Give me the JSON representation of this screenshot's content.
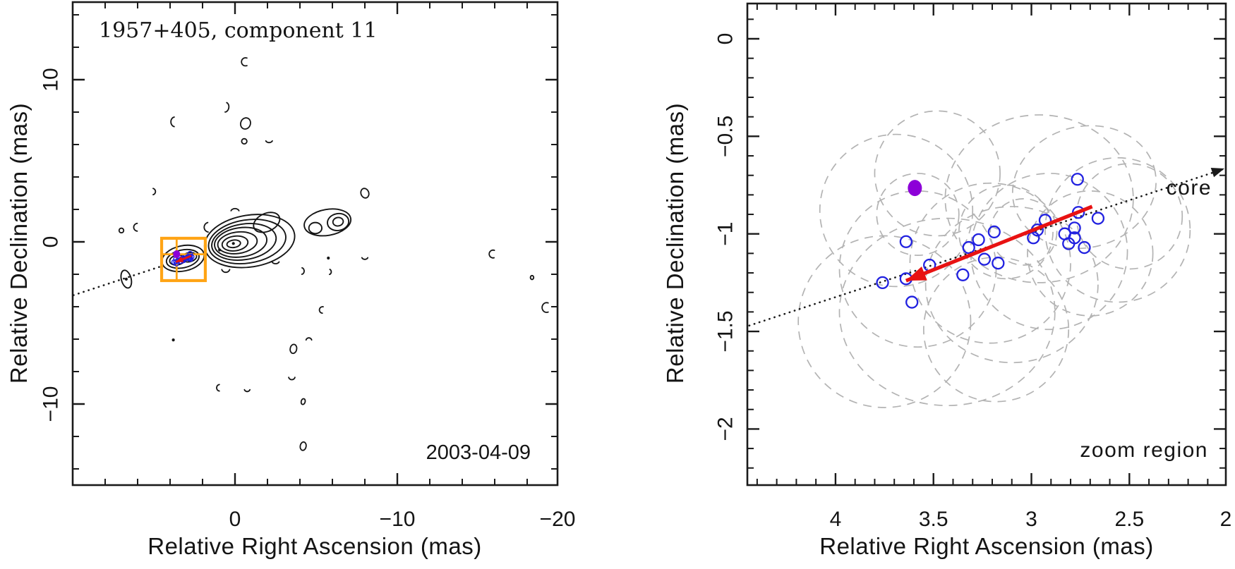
{
  "colors": {
    "contour_black": "#151515",
    "frame_black": "#1a1a1a",
    "points_blue": "#2121e0",
    "current_epoch_purple": "#8d00d8",
    "arrow_red": "#e81212",
    "zoom_box_orange": "#ffa415",
    "size_ellipse_gray": "#b3b3b3",
    "annotation_gray": "#565656",
    "date_gray": "#8a8a8a"
  },
  "chart_data": [
    {
      "type": "contour_map",
      "title": "1957+405, component 11",
      "date_label": "2003-04-09",
      "xlabel": "Relative Right Ascension (mas)",
      "ylabel": "Relative Declination (mas)",
      "xlim": [
        10,
        -19.9
      ],
      "ylim": [
        -15,
        14.8
      ],
      "axes": {
        "x_major": [
          {
            "v": 0,
            "label": "0"
          },
          {
            "v": -10,
            "label": "−10"
          },
          {
            "v": -20,
            "label": "−20"
          }
        ],
        "x_minor": [
          8,
          6,
          4,
          2,
          -2,
          -4,
          -6,
          -8,
          -12,
          -14,
          -16,
          -18
        ],
        "y_major": [
          {
            "v": 10,
            "label": "10"
          },
          {
            "v": 0,
            "label": "0"
          },
          {
            "v": -10,
            "label": "−10"
          }
        ],
        "y_minor": [
          14,
          12,
          8,
          6,
          4,
          2,
          -2,
          -4,
          -6,
          -8,
          -12,
          -14
        ]
      },
      "contours": {
        "core_jet": [
          [
            -0.9,
            0.05,
            2.8,
            1.6,
            -9
          ],
          [
            -0.75,
            0.02,
            2.4,
            1.33,
            -9
          ],
          [
            -0.55,
            0.0,
            2.0,
            1.1,
            -9
          ],
          [
            -0.35,
            -0.03,
            1.62,
            0.9,
            -8
          ],
          [
            -0.15,
            -0.06,
            1.22,
            0.66,
            -8
          ],
          [
            0.0,
            -0.1,
            0.8,
            0.45,
            -8
          ],
          [
            0.08,
            -0.12,
            0.42,
            0.23,
            -8
          ],
          [
            -1.95,
            1.2,
            0.85,
            0.55,
            -25
          ]
        ],
        "west_hotspot": [
          [
            -5.7,
            1.2,
            1.45,
            0.8,
            -10
          ],
          [
            -4.95,
            0.85,
            0.4,
            0.34,
            0
          ],
          [
            -6.35,
            1.22,
            0.66,
            0.52,
            -10
          ],
          [
            -6.35,
            1.24,
            0.32,
            0.26,
            -10
          ]
        ],
        "component11": [
          [
            3.2,
            -1.02,
            1.32,
            0.78,
            -12
          ],
          [
            3.22,
            -1.05,
            1.02,
            0.55,
            -12
          ],
          [
            3.55,
            -1.12,
            0.48,
            0.3,
            -12
          ],
          [
            2.82,
            -0.95,
            0.46,
            0.28,
            -12
          ]
        ],
        "southeast_knot": [
          [
            6.7,
            -2.3,
            0.3,
            0.56,
            -15
          ]
        ]
      },
      "peak_dots": [
        [
          0.1,
          -0.1
        ],
        [
          0.95,
          -0.5
        ],
        [
          6.7,
          -2.3
        ]
      ],
      "noise_fragments": [
        [
          -0.65,
          11.1,
          0.25,
          0.25,
          0,
          70,
          290
        ],
        [
          0.6,
          8.3,
          0.22,
          0.3,
          10,
          -80,
          80
        ],
        [
          3.7,
          7.4,
          0.25,
          0.3,
          0,
          100,
          260
        ],
        [
          -0.65,
          7.3,
          0.3,
          0.35,
          20,
          0,
          360
        ],
        [
          -0.57,
          6.2,
          0.16,
          0.16,
          0,
          0,
          360
        ],
        [
          -2.1,
          6.3,
          0.22,
          0.18,
          0,
          25,
          155
        ],
        [
          5.1,
          3.1,
          0.2,
          0.2,
          0,
          -75,
          75
        ],
        [
          7.0,
          0.7,
          0.14,
          0.14,
          0,
          0,
          360
        ],
        [
          6.0,
          0.9,
          0.24,
          0.24,
          0,
          95,
          265
        ],
        [
          1.6,
          0.9,
          0.3,
          0.3,
          0,
          100,
          255
        ],
        [
          0.0,
          1.85,
          0.26,
          0.2,
          0,
          200,
          340
        ],
        [
          -8.0,
          3.0,
          0.24,
          0.3,
          -20,
          0,
          360
        ],
        [
          0.57,
          -1.62,
          0.26,
          0.26,
          0,
          20,
          160
        ],
        [
          -2.5,
          -1.15,
          0.24,
          0.2,
          0,
          25,
          160
        ],
        [
          -4.1,
          -1.8,
          0.16,
          0.2,
          0,
          -80,
          85
        ],
        [
          -5.8,
          -1.85,
          0.13,
          0.16,
          0,
          -70,
          80
        ],
        [
          -15.9,
          -0.75,
          0.24,
          0.24,
          0,
          75,
          290
        ],
        [
          -18.3,
          -2.2,
          0.1,
          0.12,
          0,
          0,
          360
        ],
        [
          -19.2,
          -4.05,
          0.28,
          0.3,
          0,
          70,
          290
        ],
        [
          -5.4,
          -4.2,
          0.2,
          0.2,
          0,
          95,
          280
        ],
        [
          -3.6,
          -6.6,
          0.2,
          0.28,
          10,
          0,
          360
        ],
        [
          -4.55,
          -6.1,
          0.18,
          0.18,
          0,
          195,
          345
        ],
        [
          -3.5,
          -8.3,
          0.2,
          0.2,
          0,
          15,
          165
        ],
        [
          0.95,
          -9.0,
          0.18,
          0.2,
          0,
          95,
          265
        ],
        [
          -0.75,
          -9.05,
          0.18,
          0.18,
          0,
          20,
          160
        ],
        [
          -4.2,
          -9.85,
          0.12,
          0.18,
          15,
          0,
          360
        ],
        [
          -4.2,
          -12.6,
          0.18,
          0.26,
          10,
          0,
          360
        ],
        [
          -8.0,
          -0.9,
          0.2,
          0.18,
          0,
          25,
          155
        ]
      ],
      "tiny_dots": [
        [
          -5.75,
          -1.0
        ],
        [
          3.8,
          -6.05
        ]
      ],
      "jet_axis_line": {
        "x1": 9.95,
        "y1": -3.29,
        "x2": 4.55,
        "y2": -1.51,
        "arrow": false
      },
      "zoom_box": {
        "ra_max": 4.52,
        "ra_min": 1.83,
        "dec_max": 0.22,
        "dec_min": -2.39
      }
    },
    {
      "type": "scatter",
      "xlabel": "Relative Right Ascension (mas)",
      "ylabel": "Relative Declination (mas)",
      "xlim": [
        4.45,
        2.0
      ],
      "ylim": [
        -2.29,
        0.18
      ],
      "axes": {
        "x_major": [
          {
            "v": 4,
            "label": "4"
          },
          {
            "v": 3.5,
            "label": "3.5"
          },
          {
            "v": 3,
            "label": "3"
          },
          {
            "v": 2.5,
            "label": "2.5"
          },
          {
            "v": 2,
            "label": "2"
          }
        ],
        "x_minor": [
          4.4,
          4.3,
          4.2,
          4.1,
          3.9,
          3.8,
          3.7,
          3.6,
          3.4,
          3.3,
          3.2,
          3.1,
          2.9,
          2.8,
          2.7,
          2.6,
          2.4,
          2.3,
          2.2,
          2.1
        ],
        "y_major": [
          {
            "v": 0,
            "label": "0"
          },
          {
            "v": -0.5,
            "label": "−0.5"
          },
          {
            "v": -1,
            "label": "−1"
          },
          {
            "v": -1.5,
            "label": "−1.5"
          },
          {
            "v": -2,
            "label": "−2"
          }
        ],
        "y_minor": [
          0.1,
          -0.1,
          -0.2,
          -0.3,
          -0.4,
          -0.6,
          -0.7,
          -0.8,
          -0.9,
          -1.1,
          -1.2,
          -1.3,
          -1.4,
          -1.6,
          -1.7,
          -1.8,
          -1.9,
          -2.1,
          -2.2
        ]
      },
      "component_positions": [
        [
          2.765,
          -0.72
        ],
        [
          3.64,
          -1.04
        ],
        [
          3.76,
          -1.25
        ],
        [
          3.64,
          -1.23
        ],
        [
          3.61,
          -1.35
        ],
        [
          3.52,
          -1.16
        ],
        [
          3.35,
          -1.21
        ],
        [
          3.32,
          -1.07
        ],
        [
          3.27,
          -1.03
        ],
        [
          3.24,
          -1.13
        ],
        [
          3.19,
          -0.99
        ],
        [
          3.17,
          -1.15
        ],
        [
          2.99,
          -1.02
        ],
        [
          2.97,
          -0.98
        ],
        [
          2.93,
          -0.93
        ],
        [
          2.83,
          -1.0
        ],
        [
          2.78,
          -0.97
        ],
        [
          2.78,
          -1.02
        ],
        [
          2.81,
          -1.05
        ],
        [
          2.73,
          -1.07
        ],
        [
          2.76,
          -0.89
        ],
        [
          2.66,
          -0.92
        ]
      ],
      "current_epoch_position": {
        "x": 3.595,
        "y": -0.765
      },
      "epoch_size_ellipses": [
        [
          3.69,
          -0.88,
          0.39,
          0.39,
          0
        ],
        [
          3.58,
          -1.18,
          0.4,
          0.4,
          0
        ],
        [
          3.75,
          -1.45,
          0.44,
          0.44,
          0
        ],
        [
          3.43,
          -1.4,
          0.55,
          0.48,
          0
        ],
        [
          3.58,
          -0.9,
          0.21,
          0.21,
          0
        ],
        [
          3.21,
          -1.15,
          0.41,
          0.41,
          0
        ],
        [
          3.1,
          -1.26,
          0.44,
          0.4,
          0
        ],
        [
          3.18,
          -1.49,
          0.37,
          0.37,
          0
        ],
        [
          3.13,
          -0.99,
          0.24,
          0.24,
          0
        ],
        [
          3.04,
          -0.99,
          0.17,
          0.17,
          0
        ],
        [
          2.96,
          -0.82,
          0.48,
          0.43,
          0
        ],
        [
          2.91,
          -1.09,
          0.4,
          0.4,
          0
        ],
        [
          2.73,
          -0.76,
          0.37,
          0.31,
          -15
        ],
        [
          2.56,
          -0.98,
          0.37,
          0.37,
          0
        ],
        [
          2.5,
          -0.91,
          0.27,
          0.27,
          0
        ],
        [
          2.7,
          -1.1,
          0.32,
          0.32,
          0
        ],
        [
          3.48,
          -0.69,
          0.32,
          0.32,
          0
        ]
      ],
      "velocity_arrow": {
        "x1": 2.69,
        "y1": -0.86,
        "x2": 3.64,
        "y2": -1.24
      },
      "jet_axis_line": {
        "x1": 4.44,
        "y1": -1.47,
        "x2": 2.01,
        "y2": -0.665,
        "arrow": true
      },
      "core_label": "core",
      "zoom_region_label": "zoom region"
    }
  ]
}
